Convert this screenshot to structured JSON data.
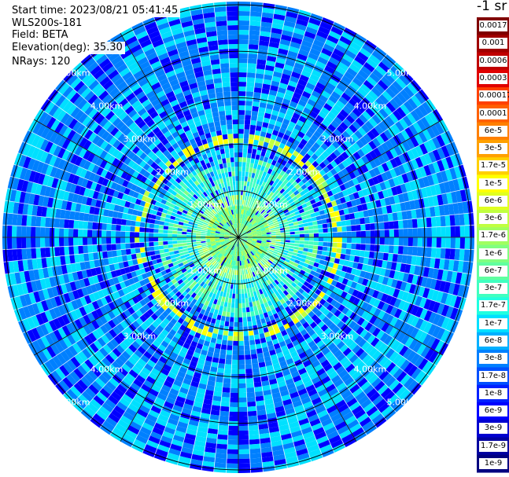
{
  "info": {
    "start_time": "Start time: 2023/08/21 05:41:45",
    "instrument": "WLS200s-181",
    "field": "Field: BETA",
    "elevation": "Elevation(deg): 35.30",
    "nrays": "NRays: 120"
  },
  "chart_data": {
    "type": "heatmap",
    "projection": "polar-ppi",
    "n_rays": 120,
    "range_rings_km": [
      1.0,
      2.0,
      3.0,
      4.0,
      5.0
    ],
    "ring_labels": [
      "1.00km",
      "2.00km",
      "3.00km",
      "4.00km",
      "5.00km"
    ],
    "radial_lines_deg": [
      0,
      30,
      60,
      90,
      120,
      150,
      180,
      210,
      240,
      270,
      300,
      330
    ],
    "colorbar": {
      "title": "-1 sr",
      "labels": [
        "0.0017",
        "0.001",
        "0.0006",
        "0.0003",
        "0.00017",
        "0.0001",
        "6e-5",
        "3e-5",
        "1.7e-5",
        "1e-5",
        "6e-6",
        "3e-6",
        "1.7e-6",
        "1e-6",
        "6e-7",
        "3e-7",
        "1.7e-7",
        "1e-7",
        "6e-8",
        "3e-8",
        "1.7e-8",
        "1e-8",
        "6e-9",
        "3e-9",
        "1.7e-9",
        "1e-9"
      ]
    },
    "colormap": [
      "#000080",
      "#0000ff",
      "#0080ff",
      "#00e0ff",
      "#40ffc0",
      "#80ff80",
      "#c0ff40",
      "#ffff00",
      "#ffa000",
      "#ff4000",
      "#c00000",
      "#800000"
    ]
  }
}
